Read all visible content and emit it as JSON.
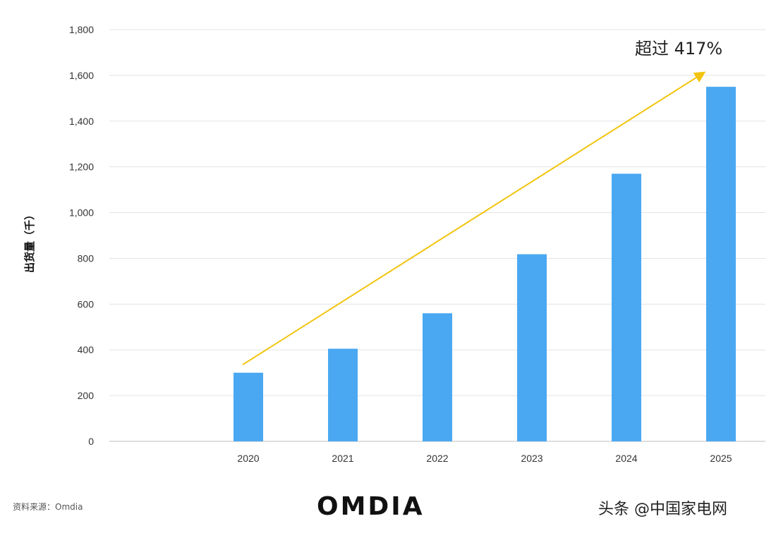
{
  "chart_data": {
    "type": "bar",
    "title": "",
    "xlabel": "",
    "ylabel": "出货量（千）",
    "categories": [
      "2020",
      "2021",
      "2022",
      "2023",
      "2024",
      "2025"
    ],
    "values": [
      300,
      405,
      560,
      818,
      1170,
      1550
    ],
    "ylim": [
      0,
      1800
    ],
    "yticks": [
      0,
      200,
      400,
      600,
      800,
      1000,
      1200,
      1400,
      1600,
      1800
    ],
    "ytick_labels": [
      "0",
      "200",
      "400",
      "600",
      "800",
      "1,000",
      "1,200",
      "1,400",
      "1,600",
      "1,800"
    ],
    "grid": true,
    "trend_arrow": {
      "from": {
        "category": "2020",
        "value": 335
      },
      "to": {
        "category": "2025",
        "value": 1610
      }
    },
    "annotation": "超过 417%"
  },
  "colors": {
    "bar": "#4aa8f2",
    "arrow": "#f2c40f",
    "grid": "#e3e3e3"
  },
  "footer": {
    "source": "资料来源：Omdia",
    "logo": "OMDIA",
    "watermark": "头条 @中国家电网"
  }
}
